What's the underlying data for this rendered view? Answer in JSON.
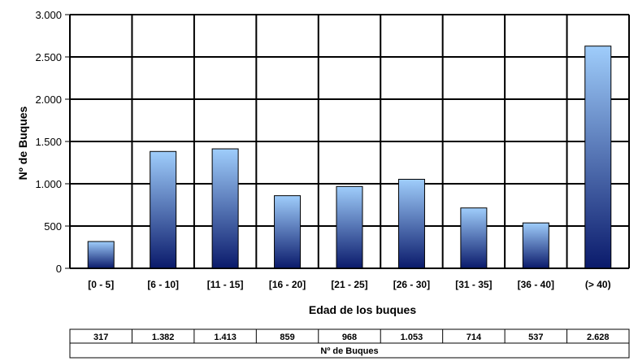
{
  "chart_data": {
    "type": "bar",
    "categories": [
      "[0 - 5]",
      "[6 - 10]",
      "[11 - 15]",
      "[16 - 20]",
      "[21 - 25]",
      "[26 - 30]",
      "[31 - 35]",
      "[36 - 40]",
      "(> 40)"
    ],
    "series": [
      {
        "name": "Nº de Buques",
        "values": [
          317,
          1382,
          1413,
          859,
          968,
          1053,
          714,
          537,
          2628
        ]
      }
    ],
    "value_labels": [
      "317",
      "1.382",
      "1.413",
      "859",
      "968",
      "1.053",
      "714",
      "537",
      "2.628"
    ],
    "xlabel": "Edad de los buques",
    "ylabel": "Nº de Buques",
    "ylim": [
      0,
      3000
    ],
    "y_ticks": [
      0,
      500,
      1000,
      1500,
      2000,
      2500,
      3000
    ],
    "y_tick_labels": [
      "0",
      "500",
      "1.000",
      "1.500",
      "2.000",
      "2.500",
      "3.000"
    ],
    "grid": true,
    "data_table": true,
    "colors": {
      "bar_top": "#9fcdfb",
      "bar_bottom": "#0a1a6b",
      "grid": "#000000"
    }
  }
}
